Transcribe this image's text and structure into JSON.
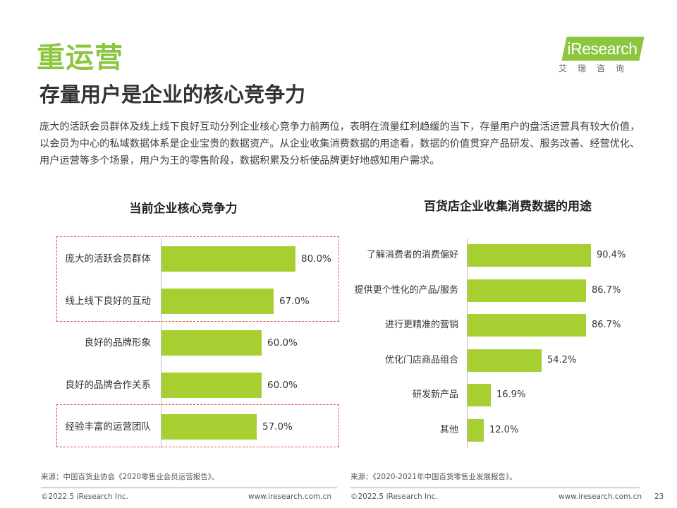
{
  "header": {
    "title": "重运营",
    "subtitle": "存量用户是企业的核心竞争力",
    "intro": "庞大的活跃会员群体及线上线下良好互动分列企业核心竞争力前两位，表明在流量红利趋缓的当下，存量用户的盘活运营具有较大价值，以会员为中心的私域数据体系是企业宝贵的数据资产。从企业收集消费数据的用途看，数据的价值贯穿产品研发、服务改善、经营优化、用户运营等多个场景，用户为王的零售阶段，数据积累及分析使品牌更好地感知用户需求。"
  },
  "logo": {
    "name": "iResearch",
    "cn": "艾瑞咨询"
  },
  "colors": {
    "accent": "#8cc63f",
    "bar": "#a8cf32",
    "highlight_border": "#e04a4a"
  },
  "chart_data": [
    {
      "type": "bar",
      "orientation": "horizontal",
      "title": "当前企业核心竞争力",
      "categories": [
        "庞大的活跃会员群体",
        "线上线下良好的互动",
        "良好的品牌形象",
        "良好的品牌合作关系",
        "经验丰富的运营团队"
      ],
      "values": [
        80.0,
        67.0,
        60.0,
        60.0,
        57.0
      ],
      "value_labels": [
        "80.0%",
        "67.0%",
        "60.0%",
        "60.0%",
        "57.0%"
      ],
      "xlim": [
        0,
        100
      ],
      "highlighted": [
        [
          0,
          1
        ],
        [
          4
        ]
      ],
      "grid": false,
      "legend": "none"
    },
    {
      "type": "bar",
      "orientation": "horizontal",
      "title": "百货店企业收集消费数据的用途",
      "categories": [
        "了解消费者的消费偏好",
        "提供更个性化的产品/服务",
        "进行更精准的营销",
        "优化门店商品组合",
        "研发新产品",
        "其他"
      ],
      "values": [
        90.4,
        86.7,
        86.7,
        54.2,
        16.9,
        12.0
      ],
      "value_labels": [
        "90.4%",
        "86.7%",
        "86.7%",
        "54.2%",
        "16.9%",
        "12.0%"
      ],
      "xlim": [
        0,
        100
      ],
      "grid": false,
      "legend": "none"
    }
  ],
  "footer": {
    "source_left": "来源：中国百货业协会《2020零售业会员运营报告》。",
    "source_right": "来源：《2020-2021年中国百货零售业发展报告》。",
    "copyright": "©2022.5 iResearch Inc.",
    "url": "www.iresearch.com.cn",
    "page_number": "23"
  }
}
